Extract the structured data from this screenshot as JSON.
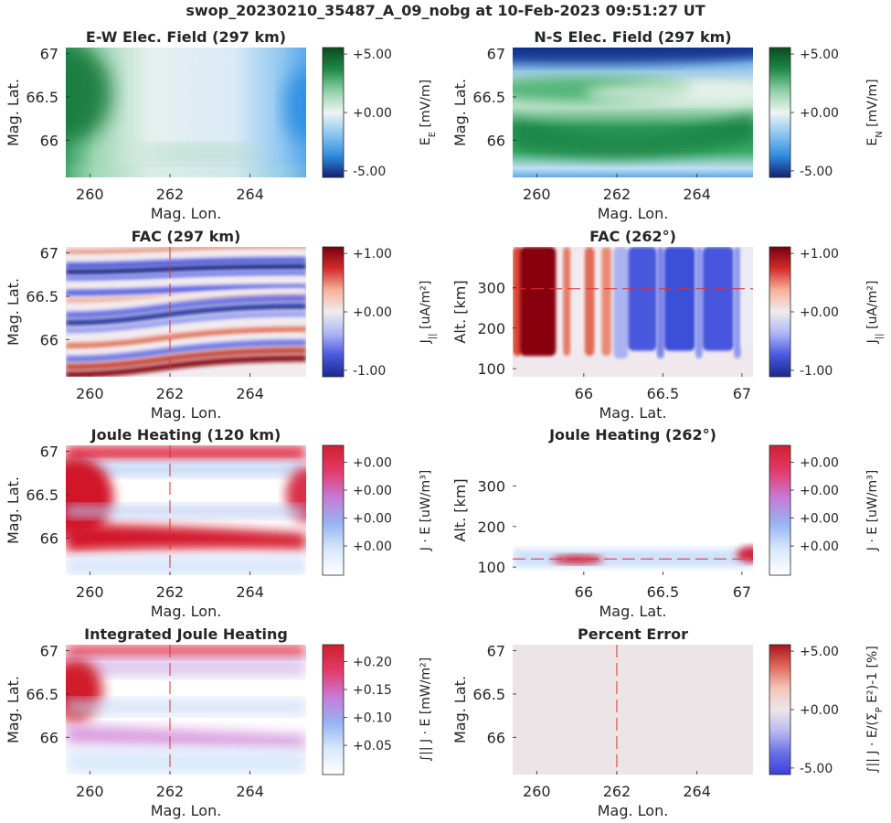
{
  "suptitle": "swop_20230210_35487_A_09_nobg at 10-Feb-2023 09:51:27 UT",
  "panels": [
    {
      "id": "ew-field",
      "title": "E-W Elec. Field (297 km)",
      "xlabel": "Mag. Lon.",
      "ylabel": "Mag. Lat.",
      "xticks": [
        "260",
        "262",
        "264"
      ],
      "xtick_values": [
        260,
        262,
        264
      ],
      "yticks": [
        "67",
        "66.5",
        "66"
      ],
      "ytick_values": [
        67,
        66.5,
        66
      ],
      "xlim": [
        259.4,
        265.4
      ],
      "ylim": [
        65.57,
        67.07
      ],
      "colormap": "green-white-blue",
      "colorbar": {
        "ticks": [
          "+5.00",
          "+0.00",
          "-5.00"
        ],
        "label_main": "E",
        "label_sub": "E",
        "label_rest": " [mV/m]",
        "colors": [
          "#0b4a1e",
          "#1d8a46",
          "#8fd0a7",
          "#eef4f4",
          "#8cc6f0",
          "#2f8de0",
          "#122070"
        ]
      },
      "cut_line": null
    },
    {
      "id": "ns-field",
      "title": "N-S Elec. Field (297 km)",
      "xlabel": "Mag. Lon.",
      "ylabel": "Mag. Lat.",
      "xticks": [
        "260",
        "262",
        "264"
      ],
      "xtick_values": [
        260,
        262,
        264
      ],
      "yticks": [
        "67",
        "66.5",
        "66"
      ],
      "ytick_values": [
        67,
        66.5,
        66
      ],
      "xlim": [
        259.4,
        265.4
      ],
      "ylim": [
        65.57,
        67.07
      ],
      "colormap": "green-white-blue",
      "colorbar": {
        "ticks": [
          "+5.00",
          "+0.00",
          "-5.00"
        ],
        "label_main": "E",
        "label_sub": "N",
        "label_rest": " [mV/m]",
        "colors": [
          "#0b4a1e",
          "#1d8a46",
          "#8fd0a7",
          "#eef4f4",
          "#8cc6f0",
          "#2f8de0",
          "#122070"
        ]
      },
      "cut_line": null
    },
    {
      "id": "fac-horiz",
      "title": "FAC (297 km)",
      "xlabel": "Mag. Lon.",
      "ylabel": "Mag. Lat.",
      "xticks": [
        "260",
        "262",
        "264"
      ],
      "xtick_values": [
        260,
        262,
        264
      ],
      "yticks": [
        "67",
        "66.5",
        "66"
      ],
      "ytick_values": [
        67,
        66.5,
        66
      ],
      "xlim": [
        259.4,
        265.4
      ],
      "ylim": [
        65.57,
        67.07
      ],
      "colormap": "red-white-blue",
      "colorbar": {
        "ticks": [
          "+1.00",
          "+0.00",
          "-1.00"
        ],
        "label_main": "J",
        "label_sub": "||",
        "label_rest": " [uA/m²]",
        "colors": [
          "#7a0010",
          "#d32b2b",
          "#f6b29a",
          "#f0ecef",
          "#aeb6f4",
          "#4a58e0",
          "#1a2a8a"
        ]
      },
      "cut_line": {
        "orientation": "vertical",
        "value": 262
      }
    },
    {
      "id": "fac-vert",
      "title": "FAC (262°)",
      "xlabel": "Mag. Lat.",
      "ylabel": "Alt. [km]",
      "xticks": [
        "66",
        "66.5",
        "67"
      ],
      "xtick_values": [
        66,
        66.5,
        67
      ],
      "yticks": [
        "300",
        "200",
        "100"
      ],
      "ytick_values": [
        300,
        200,
        100
      ],
      "xlim": [
        65.55,
        67.07
      ],
      "ylim": [
        80,
        400
      ],
      "colormap": "red-white-blue",
      "colorbar": {
        "ticks": [
          "+1.00",
          "+0.00",
          "-1.00"
        ],
        "label_main": "J",
        "label_sub": "||",
        "label_rest": " [uA/m²]",
        "colors": [
          "#7a0010",
          "#d32b2b",
          "#f6b29a",
          "#f0ecef",
          "#aeb6f4",
          "#4a58e0",
          "#1a2a8a"
        ]
      },
      "cut_line": {
        "orientation": "horizontal",
        "value": 297
      }
    },
    {
      "id": "joule-horiz",
      "title": "Joule Heating (120 km)",
      "xlabel": "Mag. Lon.",
      "ylabel": "Mag. Lat.",
      "xticks": [
        "260",
        "262",
        "264"
      ],
      "xtick_values": [
        260,
        262,
        264
      ],
      "yticks": [
        "67",
        "66.5",
        "66"
      ],
      "ytick_values": [
        67,
        66.5,
        66
      ],
      "xlim": [
        259.4,
        265.4
      ],
      "ylim": [
        65.57,
        67.07
      ],
      "colormap": "white-blue-red",
      "colorbar": {
        "ticks": [
          "+0.00",
          "+0.00",
          "+0.00",
          "+0.00"
        ],
        "label_main": "J · E",
        "label_sub": "",
        "label_rest": " [uW/m³]",
        "colors": [
          "#cf1f2e",
          "#e43a6b",
          "#c77ad6",
          "#96b3f2",
          "#d7e8fb",
          "#ffffff"
        ]
      },
      "cut_line": {
        "orientation": "vertical",
        "value": 262
      }
    },
    {
      "id": "joule-vert",
      "title": "Joule Heating (262°)",
      "xlabel": "Mag. Lat.",
      "ylabel": "Alt. [km]",
      "xticks": [
        "66",
        "66.5",
        "67"
      ],
      "xtick_values": [
        66,
        66.5,
        67
      ],
      "yticks": [
        "300",
        "200",
        "100"
      ],
      "ytick_values": [
        300,
        200,
        100
      ],
      "xlim": [
        65.55,
        67.07
      ],
      "ylim": [
        80,
        400
      ],
      "colormap": "white-blue-red",
      "colorbar": {
        "ticks": [
          "+0.00",
          "+0.00",
          "+0.00",
          "+0.00"
        ],
        "label_main": "J · E",
        "label_sub": "",
        "label_rest": " [uW/m³]",
        "colors": [
          "#cf1f2e",
          "#e43a6b",
          "#c77ad6",
          "#96b3f2",
          "#d7e8fb",
          "#ffffff"
        ]
      },
      "cut_line": {
        "orientation": "horizontal",
        "value": 120
      }
    },
    {
      "id": "joule-integrated",
      "title": "Integrated Joule Heating",
      "xlabel": "Mag. Lon.",
      "ylabel": "Mag. Lat.",
      "xticks": [
        "260",
        "262",
        "264"
      ],
      "xtick_values": [
        260,
        262,
        264
      ],
      "yticks": [
        "67",
        "66.5",
        "66"
      ],
      "ytick_values": [
        67,
        66.5,
        66
      ],
      "xlim": [
        259.4,
        265.4
      ],
      "ylim": [
        65.57,
        67.07
      ],
      "colormap": "white-blue-red",
      "colorbar": {
        "ticks": [
          "+0.20",
          "+0.15",
          "+0.10",
          "+0.05"
        ],
        "label_main": "∫|| J · E",
        "label_sub": "",
        "label_rest": " [mW/m²]",
        "colors": [
          "#cf1f2e",
          "#e43a6b",
          "#c77ad6",
          "#96b3f2",
          "#d7e8fb",
          "#ffffff"
        ]
      },
      "cut_line": {
        "orientation": "vertical",
        "value": 262
      }
    },
    {
      "id": "percent-error",
      "title": "Percent Error",
      "xlabel": "Mag. Lon.",
      "ylabel": "Mag. Lat.",
      "xticks": [
        "260",
        "262",
        "264"
      ],
      "xtick_values": [
        260,
        262,
        264
      ],
      "yticks": [
        "67",
        "66.5",
        "66"
      ],
      "ytick_values": [
        67,
        66.5,
        66
      ],
      "xlim": [
        259.4,
        265.4
      ],
      "ylim": [
        65.57,
        67.07
      ],
      "colormap": "red-white-blue",
      "colorbar": {
        "ticks": [
          "+5.00",
          "+0.00",
          "-5.00"
        ],
        "label_main": "∫|| J · E/(Σ",
        "label_sub": "P",
        "label_rest": " E²)-1 [%]",
        "colors": [
          "#a8141c",
          "#e0685a",
          "#f3c4b6",
          "#ede6ea",
          "#b9b9f0",
          "#6b6fe6",
          "#3b40d8"
        ]
      },
      "cut_line": {
        "orientation": "vertical",
        "value": 262
      }
    }
  ],
  "chart_data": [
    {
      "type": "heatmap",
      "title": "E-W Elec. Field (297 km)",
      "xlabel": "Mag. Lon.",
      "ylabel": "Mag. Lat.",
      "xlim": [
        259.4,
        265.4
      ],
      "ylim": [
        65.57,
        67.07
      ],
      "colorbar_label": "E_E [mV/m]",
      "colorbar_range": [
        -5,
        5
      ],
      "description_values": {
        "west_edge": 3,
        "center": 0,
        "east_edge": -3
      }
    },
    {
      "type": "heatmap",
      "title": "N-S Elec. Field (297 km)",
      "xlabel": "Mag. Lon.",
      "ylabel": "Mag. Lat.",
      "xlim": [
        259.4,
        265.4
      ],
      "ylim": [
        65.57,
        67.07
      ],
      "colorbar_label": "E_N [mV/m]",
      "colorbar_range": [
        -5,
        5
      ]
    },
    {
      "type": "heatmap",
      "title": "FAC (297 km)",
      "xlabel": "Mag. Lon.",
      "ylabel": "Mag. Lat.",
      "xlim": [
        259.4,
        265.4
      ],
      "ylim": [
        65.57,
        67.07
      ],
      "colorbar_label": "J_|| [uA/m²]",
      "colorbar_range": [
        -1.6,
        1.6
      ]
    },
    {
      "type": "heatmap",
      "title": "FAC (262°)",
      "xlabel": "Mag. Lat.",
      "ylabel": "Alt. [km]",
      "xlim": [
        65.55,
        67.07
      ],
      "ylim": [
        80,
        400
      ],
      "colorbar_label": "J_|| [uA/m²]",
      "colorbar_range": [
        -1.6,
        1.6
      ]
    },
    {
      "type": "heatmap",
      "title": "Joule Heating (120 km)",
      "xlabel": "Mag. Lon.",
      "ylabel": "Mag. Lat.",
      "colorbar_label": "J · E [uW/m³]"
    },
    {
      "type": "heatmap",
      "title": "Joule Heating (262°)",
      "xlabel": "Mag. Lat.",
      "ylabel": "Alt. [km]",
      "colorbar_label": "J · E [uW/m³]"
    },
    {
      "type": "heatmap",
      "title": "Integrated Joule Heating",
      "xlabel": "Mag. Lon.",
      "ylabel": "Mag. Lat.",
      "colorbar_label": "∫|| J · E [mW/m²]",
      "colorbar_range": [
        0,
        0.23
      ]
    },
    {
      "type": "heatmap",
      "title": "Percent Error",
      "xlabel": "Mag. Lon.",
      "ylabel": "Mag. Lat.",
      "colorbar_label": "∫|| J · E/(Σ_P E²)-1 [%]",
      "colorbar_range": [
        -5,
        5
      ],
      "uniform_value": 0
    }
  ]
}
